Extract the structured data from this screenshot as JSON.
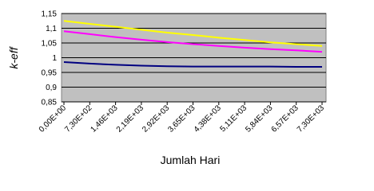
{
  "chart_data": {
    "type": "line",
    "y_label": "k-eff",
    "x_label": "Jumlah Hari",
    "categories": [
      "0,00E+00",
      "7,30E+02",
      "1,46E+03",
      "2,19E+03",
      "2,92E+03",
      "3,65E+03",
      "4,38E+03",
      "5,11E+03",
      "5,84E+03",
      "6,57E+03",
      "7,30E+03"
    ],
    "series": [
      {
        "color": "#ffff00",
        "values": [
          1.125,
          1.115,
          1.105,
          1.095,
          1.085,
          1.077,
          1.068,
          1.06,
          1.052,
          1.046,
          1.04
        ]
      },
      {
        "color": "#ff00ff",
        "values": [
          1.09,
          1.08,
          1.07,
          1.061,
          1.053,
          1.046,
          1.04,
          1.034,
          1.029,
          1.025,
          1.02
        ]
      },
      {
        "color": "#000080",
        "values": [
          0.985,
          0.98,
          0.976,
          0.973,
          0.971,
          0.97,
          0.97,
          0.97,
          0.97,
          0.969,
          0.969
        ]
      }
    ],
    "ylim": [
      0.85,
      1.15
    ],
    "yticks": [
      {
        "value": 0.85,
        "label": "0,85"
      },
      {
        "value": 0.9,
        "label": "0,9"
      },
      {
        "value": 0.95,
        "label": "0,95"
      },
      {
        "value": 1,
        "label": "1"
      },
      {
        "value": 1.05,
        "label": "1,05"
      },
      {
        "value": 1.1,
        "label": "1,1"
      },
      {
        "value": 1.15,
        "label": "1,15"
      }
    ],
    "grid": true,
    "plot_background": "#c0c0c0"
  }
}
